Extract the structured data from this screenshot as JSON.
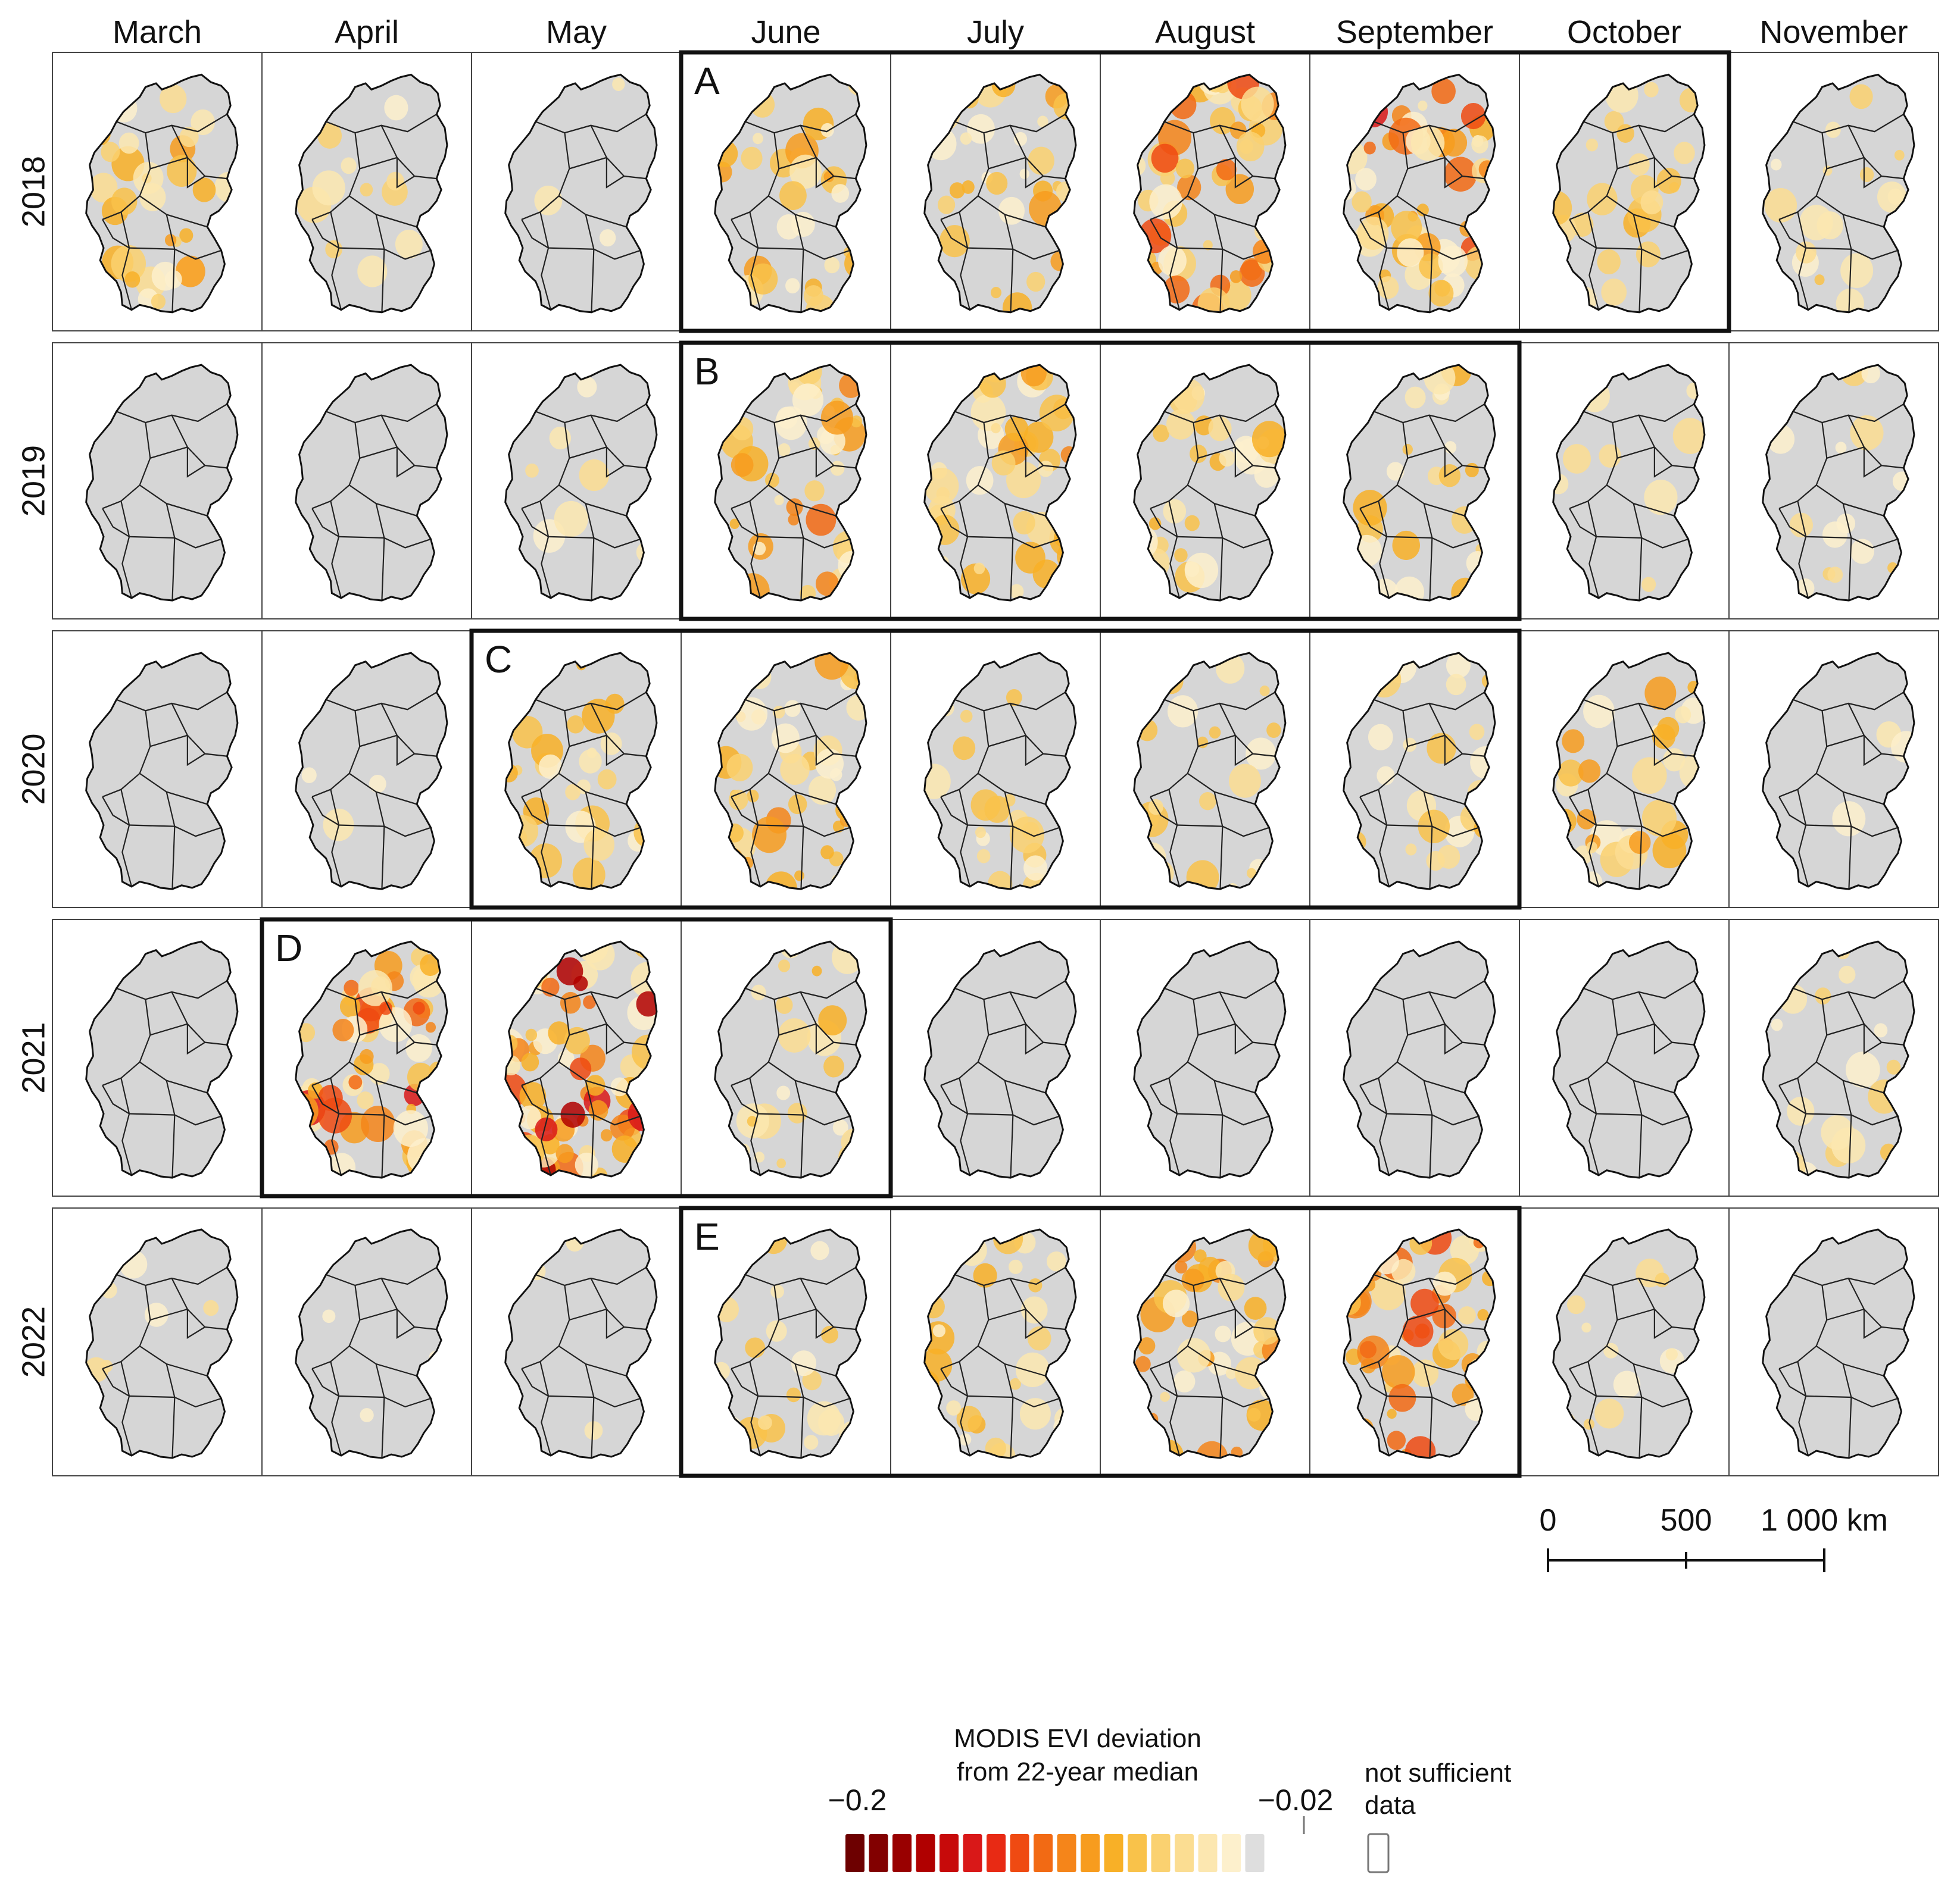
{
  "figure": {
    "months": [
      "March",
      "April",
      "May",
      "June",
      "July",
      "August",
      "September",
      "October",
      "November"
    ],
    "years": [
      "2018",
      "2019",
      "2020",
      "2021",
      "2022"
    ]
  },
  "highlight_boxes": [
    {
      "label": "A",
      "year": "2018",
      "start_month": "June",
      "end_month": "October"
    },
    {
      "label": "B",
      "year": "2019",
      "start_month": "June",
      "end_month": "September"
    },
    {
      "label": "C",
      "year": "2020",
      "start_month": "May",
      "end_month": "September"
    },
    {
      "label": "D",
      "year": "2021",
      "start_month": "April",
      "end_month": "June"
    },
    {
      "label": "E",
      "year": "2022",
      "start_month": "June",
      "end_month": "September"
    }
  ],
  "intensity": [
    [
      0.45,
      0.2,
      0.04,
      0.45,
      0.45,
      0.8,
      0.85,
      0.35,
      0.25
    ],
    [
      0.0,
      0.02,
      0.1,
      0.65,
      0.55,
      0.4,
      0.35,
      0.12,
      0.22
    ],
    [
      0.0,
      0.04,
      0.4,
      0.6,
      0.3,
      0.3,
      0.35,
      0.45,
      0.05
    ],
    [
      0.0,
      0.85,
      0.95,
      0.35,
      0.0,
      0.0,
      0.0,
      0.0,
      0.25
    ],
    [
      0.08,
      0.06,
      0.04,
      0.3,
      0.4,
      0.6,
      0.75,
      0.15,
      0.0
    ]
  ],
  "scale_bar": {
    "labels": [
      "0",
      "500",
      "1 000 km"
    ]
  },
  "legend": {
    "title_line1": "MODIS EVI deviation",
    "title_line2": "from 22-year median",
    "min_label": "−0.2",
    "max_label": "−0.02",
    "nodata_line1": "not sufficient",
    "nodata_line2": "data",
    "colors": [
      "#6d0000",
      "#820000",
      "#990000",
      "#b00000",
      "#c70a0a",
      "#d91818",
      "#e82a14",
      "#ef4a12",
      "#f26a14",
      "#f5851a",
      "#f79c1e",
      "#f8b027",
      "#f9c24a",
      "#fad170",
      "#fbdd92",
      "#fce7b0",
      "#fdf0cc",
      "#dedede"
    ]
  },
  "colors": {
    "base": "#d6d6d6",
    "border": "#111111",
    "nodata": "#ffffff"
  }
}
